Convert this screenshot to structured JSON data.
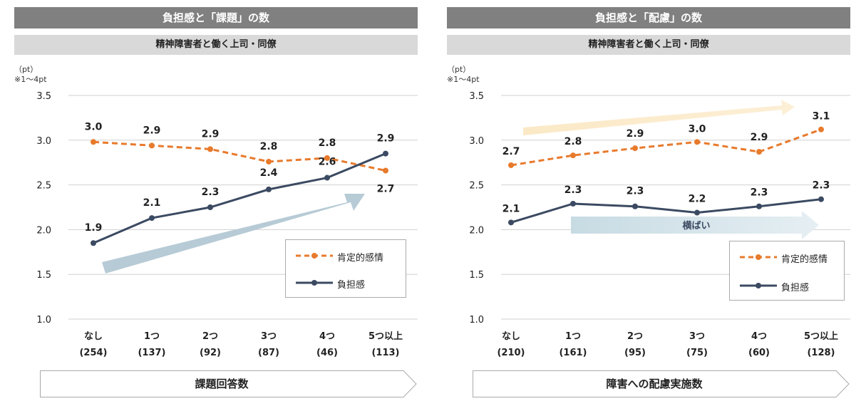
{
  "left_panel": {
    "title": "負担感と「課題」の数",
    "subtitle": "精神障害者と働く上司・同僚",
    "unit_line1": "（pt）",
    "unit_line2": "※1～4pt",
    "bottom_label": "課題回答数",
    "legend": {
      "series1": "肯定的感情",
      "series2": "負担感"
    }
  },
  "right_panel": {
    "title": "負担感と「配慮」の数",
    "subtitle": "精神障害者と働く上司・同僚",
    "unit_line1": "（pt）",
    "unit_line2": "※1～4pt",
    "bottom_label": "障害への配慮実施数",
    "trend_label": "横ばい",
    "legend": {
      "series1": "肯定的感情",
      "series2": "負担感"
    }
  },
  "colors": {
    "orange": "#e87a2c",
    "navy": "#3b4a62",
    "gray_bar": "#808080",
    "light_bar": "#d9d9d9",
    "blue_arrow": "#b7cbd6",
    "yellow_arrow": "#fbe9c6",
    "light_blue_arrow": "#d6e5ec"
  },
  "chart_data": [
    {
      "type": "line",
      "title": "負担感と「課題」の数",
      "categories": [
        "なし",
        "1つ",
        "2つ",
        "3つ",
        "4つ",
        "5つ以上"
      ],
      "category_counts": [
        "(254)",
        "(137)",
        "(92)",
        "(87)",
        "(46)",
        "(113)"
      ],
      "ylim": [
        1.0,
        3.5
      ],
      "yticks": [
        "1.0",
        "1.5",
        "2.0",
        "2.5",
        "3.0",
        "3.5"
      ],
      "grid": true,
      "legend_position": "bottom-right",
      "series": [
        {
          "name": "肯定的感情",
          "values": [
            2.98,
            2.94,
            2.9,
            2.76,
            2.8,
            2.66
          ],
          "labels": [
            "3.0",
            "2.9",
            "2.9",
            "2.8",
            "2.8",
            "2.7"
          ],
          "style": "dashed"
        },
        {
          "name": "負担感",
          "values": [
            1.85,
            2.13,
            2.25,
            2.45,
            2.58,
            2.85
          ],
          "labels": [
            "1.9",
            "2.1",
            "2.3",
            "2.4",
            "2.6",
            "2.9"
          ],
          "style": "solid"
        }
      ]
    },
    {
      "type": "line",
      "title": "負担感と「配慮」の数",
      "categories": [
        "なし",
        "1つ",
        "2つ",
        "3つ",
        "4つ",
        "5つ以上"
      ],
      "category_counts": [
        "(210)",
        "(161)",
        "(95)",
        "(75)",
        "(60)",
        "(128)"
      ],
      "ylim": [
        1.0,
        3.5
      ],
      "yticks": [
        "1.0",
        "1.5",
        "2.0",
        "2.5",
        "3.0",
        "3.5"
      ],
      "grid": true,
      "legend_position": "bottom-right",
      "series": [
        {
          "name": "肯定的感情",
          "values": [
            2.72,
            2.83,
            2.91,
            2.98,
            2.87,
            3.12
          ],
          "labels": [
            "2.7",
            "2.8",
            "2.9",
            "3.0",
            "2.9",
            "3.1"
          ],
          "style": "dashed"
        },
        {
          "name": "負担感",
          "values": [
            2.08,
            2.29,
            2.26,
            2.19,
            2.26,
            2.34
          ],
          "labels": [
            "2.1",
            "2.3",
            "2.3",
            "2.2",
            "2.3",
            "2.3"
          ],
          "style": "solid"
        }
      ]
    }
  ]
}
